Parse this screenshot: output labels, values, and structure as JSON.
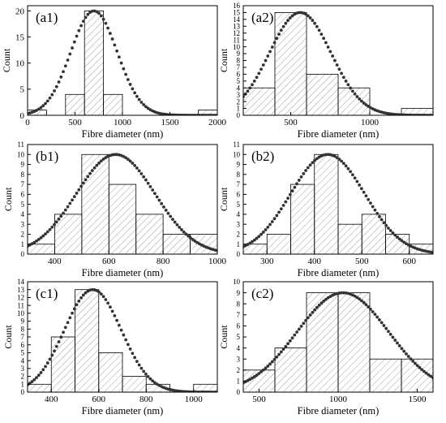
{
  "chart_data": [
    {
      "type": "bar",
      "panel_label": "(a1)",
      "xlabel": "Fibre diameter (nm)",
      "ylabel": "Count",
      "xlim": [
        0,
        2000
      ],
      "ylim": [
        0,
        21
      ],
      "xticks": [
        0,
        500,
        1000,
        1500,
        2000
      ],
      "yticks": [
        0,
        5,
        10,
        15,
        20
      ],
      "bins": [
        {
          "start": 0,
          "end": 200,
          "count": 1
        },
        {
          "start": 400,
          "end": 600,
          "count": 4
        },
        {
          "start": 600,
          "end": 800,
          "count": 20
        },
        {
          "start": 800,
          "end": 1000,
          "count": 4
        },
        {
          "start": 1800,
          "end": 2000,
          "count": 1
        }
      ],
      "fit": {
        "mean": 700,
        "sd": 245,
        "peak": 20
      }
    },
    {
      "type": "bar",
      "panel_label": "(a2)",
      "xlabel": "Fibre diameter (nm)",
      "ylabel": "Count",
      "xlim": [
        200,
        1400
      ],
      "ylim": [
        0,
        16
      ],
      "xticks": [
        500,
        1000
      ],
      "yticks": [
        0,
        1,
        2,
        3,
        4,
        5,
        6,
        7,
        8,
        9,
        10,
        11,
        12,
        13,
        14,
        15,
        16
      ],
      "bins": [
        {
          "start": 200,
          "end": 400,
          "count": 4
        },
        {
          "start": 400,
          "end": 600,
          "count": 15
        },
        {
          "start": 600,
          "end": 800,
          "count": 6
        },
        {
          "start": 800,
          "end": 1000,
          "count": 4
        },
        {
          "start": 1200,
          "end": 1400,
          "count": 1
        }
      ],
      "fit": {
        "mean": 560,
        "sd": 195,
        "peak": 15
      }
    },
    {
      "type": "bar",
      "panel_label": "(b1)",
      "xlabel": "Fibre diameter (nm)",
      "ylabel": "Count",
      "xlim": [
        300,
        1000
      ],
      "ylim": [
        0,
        11
      ],
      "xticks": [
        400,
        600,
        800,
        1000
      ],
      "yticks": [
        0,
        1,
        2,
        3,
        4,
        5,
        6,
        7,
        8,
        9,
        10,
        11
      ],
      "bins": [
        {
          "start": 300,
          "end": 400,
          "count": 1
        },
        {
          "start": 400,
          "end": 500,
          "count": 4
        },
        {
          "start": 500,
          "end": 600,
          "count": 10
        },
        {
          "start": 600,
          "end": 700,
          "count": 7
        },
        {
          "start": 700,
          "end": 800,
          "count": 4
        },
        {
          "start": 800,
          "end": 900,
          "count": 2
        },
        {
          "start": 900,
          "end": 1000,
          "count": 2
        }
      ],
      "fit": {
        "mean": 625,
        "sd": 145,
        "peak": 10
      }
    },
    {
      "type": "bar",
      "panel_label": "(b2)",
      "xlabel": "Fibre diameter (nm)",
      "ylabel": "Count",
      "xlim": [
        250,
        650
      ],
      "ylim": [
        0,
        11
      ],
      "xticks": [
        300,
        400,
        500,
        600
      ],
      "yticks": [
        0,
        1,
        2,
        3,
        4,
        5,
        6,
        7,
        8,
        9,
        10,
        11
      ],
      "bins": [
        {
          "start": 250,
          "end": 300,
          "count": 1
        },
        {
          "start": 300,
          "end": 350,
          "count": 2
        },
        {
          "start": 350,
          "end": 400,
          "count": 7
        },
        {
          "start": 400,
          "end": 450,
          "count": 10
        },
        {
          "start": 450,
          "end": 500,
          "count": 3
        },
        {
          "start": 500,
          "end": 550,
          "count": 4
        },
        {
          "start": 550,
          "end": 600,
          "count": 2
        },
        {
          "start": 600,
          "end": 650,
          "count": 1
        }
      ],
      "fit": {
        "mean": 428,
        "sd": 78,
        "peak": 10
      }
    },
    {
      "type": "bar",
      "panel_label": "(c1)",
      "xlabel": "Fibre diameter (nm)",
      "ylabel": "Count",
      "xlim": [
        300,
        1100
      ],
      "ylim": [
        0,
        14
      ],
      "xticks": [
        400,
        600,
        800,
        1000
      ],
      "yticks": [
        0,
        1,
        2,
        3,
        4,
        5,
        6,
        7,
        8,
        9,
        10,
        11,
        12,
        13,
        14
      ],
      "bins": [
        {
          "start": 300,
          "end": 400,
          "count": 1
        },
        {
          "start": 400,
          "end": 500,
          "count": 7
        },
        {
          "start": 500,
          "end": 600,
          "count": 13
        },
        {
          "start": 600,
          "end": 700,
          "count": 5
        },
        {
          "start": 700,
          "end": 800,
          "count": 2
        },
        {
          "start": 800,
          "end": 900,
          "count": 1
        },
        {
          "start": 1000,
          "end": 1100,
          "count": 1
        }
      ],
      "fit": {
        "mean": 575,
        "sd": 120,
        "peak": 13
      }
    },
    {
      "type": "bar",
      "panel_label": "(c2)",
      "xlabel": "Fibre diameter (nm)",
      "ylabel": "Count",
      "xlim": [
        400,
        1600
      ],
      "ylim": [
        0,
        10
      ],
      "xticks": [
        500,
        1000,
        1500
      ],
      "yticks": [
        0,
        1,
        2,
        3,
        4,
        5,
        6,
        7,
        8,
        9,
        10
      ],
      "bins": [
        {
          "start": 400,
          "end": 600,
          "count": 2
        },
        {
          "start": 600,
          "end": 800,
          "count": 4
        },
        {
          "start": 800,
          "end": 1000,
          "count": 9
        },
        {
          "start": 1000,
          "end": 1200,
          "count": 9
        },
        {
          "start": 1200,
          "end": 1400,
          "count": 3
        },
        {
          "start": 1400,
          "end": 1600,
          "count": 3
        }
      ],
      "fit": {
        "mean": 1030,
        "sd": 290,
        "peak": 9
      }
    }
  ]
}
